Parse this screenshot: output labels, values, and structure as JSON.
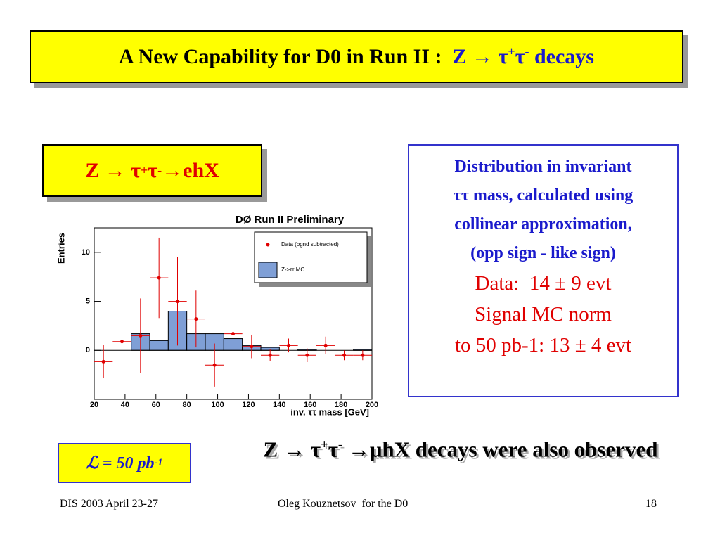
{
  "header": {
    "title": "A New Capability for D0 in Run II :",
    "formula": [
      "Z → τ",
      "+",
      "τ",
      "-",
      " decays"
    ]
  },
  "channel_box": {
    "formula": [
      "Z → τ",
      "+",
      "τ",
      "-",
      " →ehX"
    ]
  },
  "description": {
    "lines": [
      "Distribution in invariant",
      "ττ mass, calculated using",
      "collinear approximation,",
      "(opp sign - like sign)"
    ],
    "result_lines": [
      "Data:  14 ± 9 evt",
      "Signal MC norm",
      "to 50 pb-1: 13 ± 4 evt"
    ]
  },
  "luminosity": {
    "parts": [
      "ℒ = 50 pb",
      "-1"
    ]
  },
  "observation": {
    "parts": [
      "Z → τ",
      "+",
      "τ",
      "-",
      " →μhX decays were also observed"
    ]
  },
  "footer": {
    "left": "DIS 2003 April 23-27",
    "center": "Oleg Kouznetsov  for the D0",
    "page": "18"
  },
  "chart_data": {
    "type": "histogram",
    "title": "DØ Run II Preliminary",
    "x_label": "inv. ττ mass [GeV]",
    "y_label": "Entries",
    "bins": [
      20,
      32,
      44,
      56,
      68,
      80,
      92,
      104,
      116,
      128,
      140,
      152,
      164,
      176,
      188,
      200
    ],
    "series": [
      {
        "name": "Z->ττ MC",
        "color": "#7f9fd6",
        "values": [
          0,
          0,
          1.7,
          1.0,
          4.0,
          1.7,
          1.7,
          1.2,
          0.5,
          0.3,
          0,
          0.1,
          0,
          0,
          0.1
        ]
      },
      {
        "name": "Data (bgnd subtracted)",
        "color": "#e00000",
        "values": [
          -1.15,
          0.9,
          1.5,
          7.4,
          5.0,
          3.2,
          -1.5,
          1.7,
          0.4,
          -0.5,
          0.5,
          -0.5,
          0.5,
          -0.5,
          -0.5
        ],
        "errors": [
          1.7,
          3.3,
          3.8,
          4.1,
          4.5,
          2.9,
          2.2,
          1.7,
          1.2,
          0.6,
          0.7,
          0.7,
          0.9,
          0.5,
          0.5
        ]
      }
    ],
    "xlim": [
      20,
      200
    ],
    "ylim": [
      -5,
      12.5
    ],
    "xticks": [
      20,
      40,
      60,
      80,
      100,
      120,
      140,
      160,
      180,
      200
    ],
    "yticks": [
      0,
      5,
      10
    ]
  }
}
